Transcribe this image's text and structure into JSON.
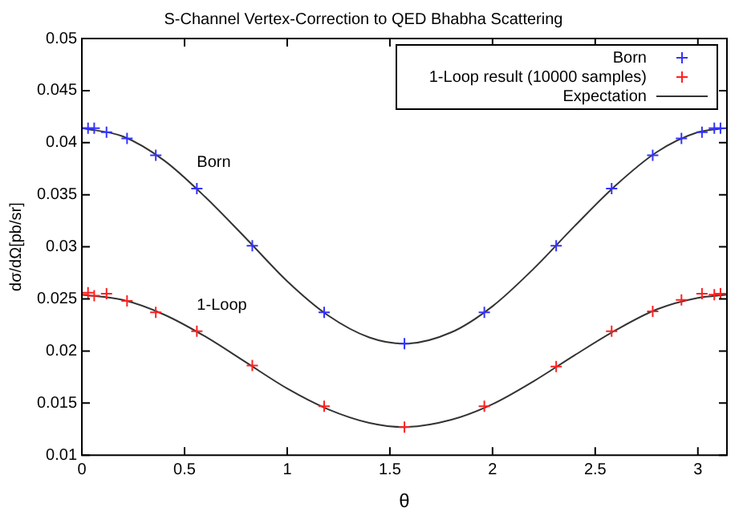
{
  "chart_data": {
    "type": "scatter",
    "title": "S-Channel Vertex-Correction to QED Bhabha Scattering",
    "xlabel": "θ",
    "ylabel": "dσ/dΩ[pb/sr]",
    "xlim": [
      0,
      3.1416
    ],
    "xticks": [
      0,
      0.5,
      1,
      1.5,
      2,
      2.5,
      3
    ],
    "ylim": [
      0.01,
      0.05
    ],
    "yticks": [
      0.01,
      0.015,
      0.02,
      0.025,
      0.03,
      0.035,
      0.04,
      0.045,
      0.05
    ],
    "grid": false,
    "legend": "top right",
    "annotations": [
      "Born",
      "1-Loop"
    ],
    "series": [
      {
        "name": "Born",
        "type": "scatter",
        "marker": "cross",
        "color": "#3333ff",
        "x": [
          0,
          0.03,
          0.06,
          0.12,
          0.22,
          0.36,
          0.56,
          0.83,
          1.18,
          1.571,
          1.96,
          2.31,
          2.58,
          2.78,
          2.92,
          3.02,
          3.08,
          3.11
        ],
        "values": [
          0.0414,
          0.0414,
          0.0414,
          0.041,
          0.0404,
          0.0388,
          0.0356,
          0.0301,
          0.0237,
          0.0207,
          0.0237,
          0.0301,
          0.0356,
          0.0388,
          0.0404,
          0.041,
          0.0414,
          0.0414
        ]
      },
      {
        "name": "1-Loop result (10000 samples)",
        "type": "scatter",
        "marker": "cross",
        "color": "#ff2020",
        "x": [
          0,
          0.03,
          0.06,
          0.12,
          0.22,
          0.36,
          0.56,
          0.83,
          1.18,
          1.571,
          1.96,
          2.31,
          2.58,
          2.78,
          2.92,
          3.02,
          3.08,
          3.11
        ],
        "values": [
          0.0254,
          0.0256,
          0.0253,
          0.0255,
          0.0248,
          0.0237,
          0.0219,
          0.0186,
          0.0147,
          0.0127,
          0.0147,
          0.0185,
          0.0219,
          0.0238,
          0.0249,
          0.0255,
          0.0254,
          0.0255
        ]
      },
      {
        "name": "Expectation",
        "type": "line",
        "marker": "none",
        "color": "#333333",
        "x": [
          0,
          0.2,
          0.4,
          0.6,
          0.8,
          1,
          1.2,
          1.4,
          1.57,
          1.8,
          2,
          2.2,
          2.4,
          2.6,
          2.8,
          3,
          3.14
        ],
        "values": [
          0.0414,
          0.0406,
          0.0383,
          0.0348,
          0.0308,
          0.0267,
          0.0234,
          0.0213,
          0.0207,
          0.0218,
          0.0243,
          0.0279,
          0.032,
          0.0359,
          0.0391,
          0.041,
          0.0414
        ]
      },
      {
        "type": "line",
        "marker": "none",
        "color": "#333333",
        "x": [
          0,
          0.2,
          0.4,
          0.6,
          0.8,
          1,
          1.2,
          1.4,
          1.57,
          1.8,
          2,
          2.2,
          2.4,
          2.6,
          2.8,
          3,
          3.14
        ],
        "values": [
          0.0254,
          0.0249,
          0.0235,
          0.0214,
          0.0189,
          0.0164,
          0.0144,
          0.0131,
          0.0127,
          0.0134,
          0.0149,
          0.0171,
          0.0196,
          0.022,
          0.024,
          0.0251,
          0.0254
        ]
      }
    ]
  }
}
